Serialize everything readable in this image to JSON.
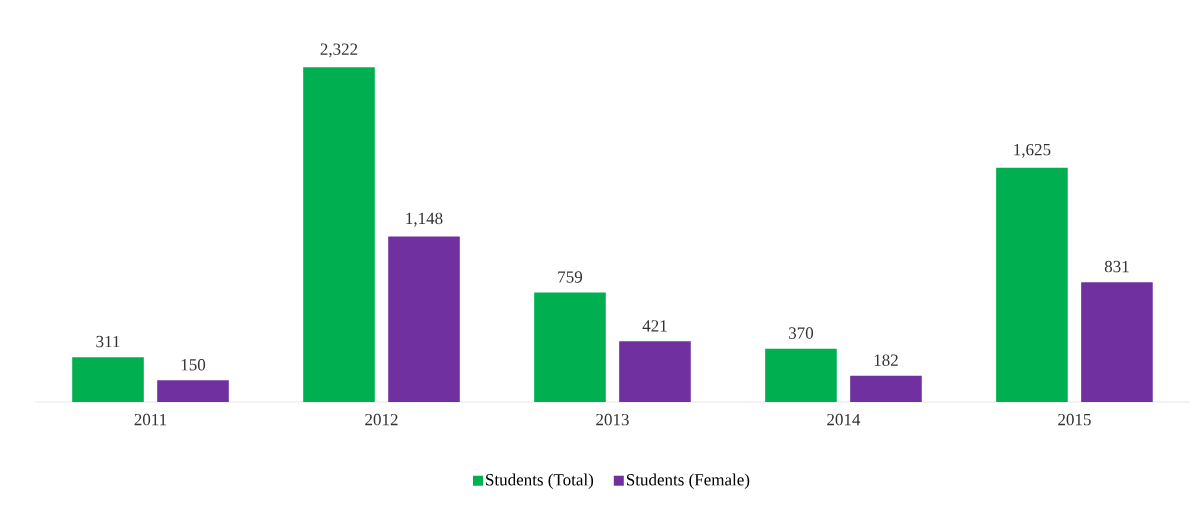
{
  "chart_data": {
    "type": "bar",
    "categories": [
      "2011",
      "2012",
      "2013",
      "2014",
      "2015"
    ],
    "series": [
      {
        "name": "Students (Total)",
        "color": "#00b050",
        "values": [
          311,
          2322,
          759,
          370,
          1625
        ],
        "value_labels": [
          "311",
          "2,322",
          "759",
          "370",
          "1,625"
        ]
      },
      {
        "name": "Students (Female)",
        "color": "#7030a0",
        "values": [
          150,
          1148,
          421,
          182,
          831
        ],
        "value_labels": [
          "150",
          "1,148",
          "421",
          "182",
          "831"
        ]
      }
    ],
    "legend": "bottom"
  }
}
